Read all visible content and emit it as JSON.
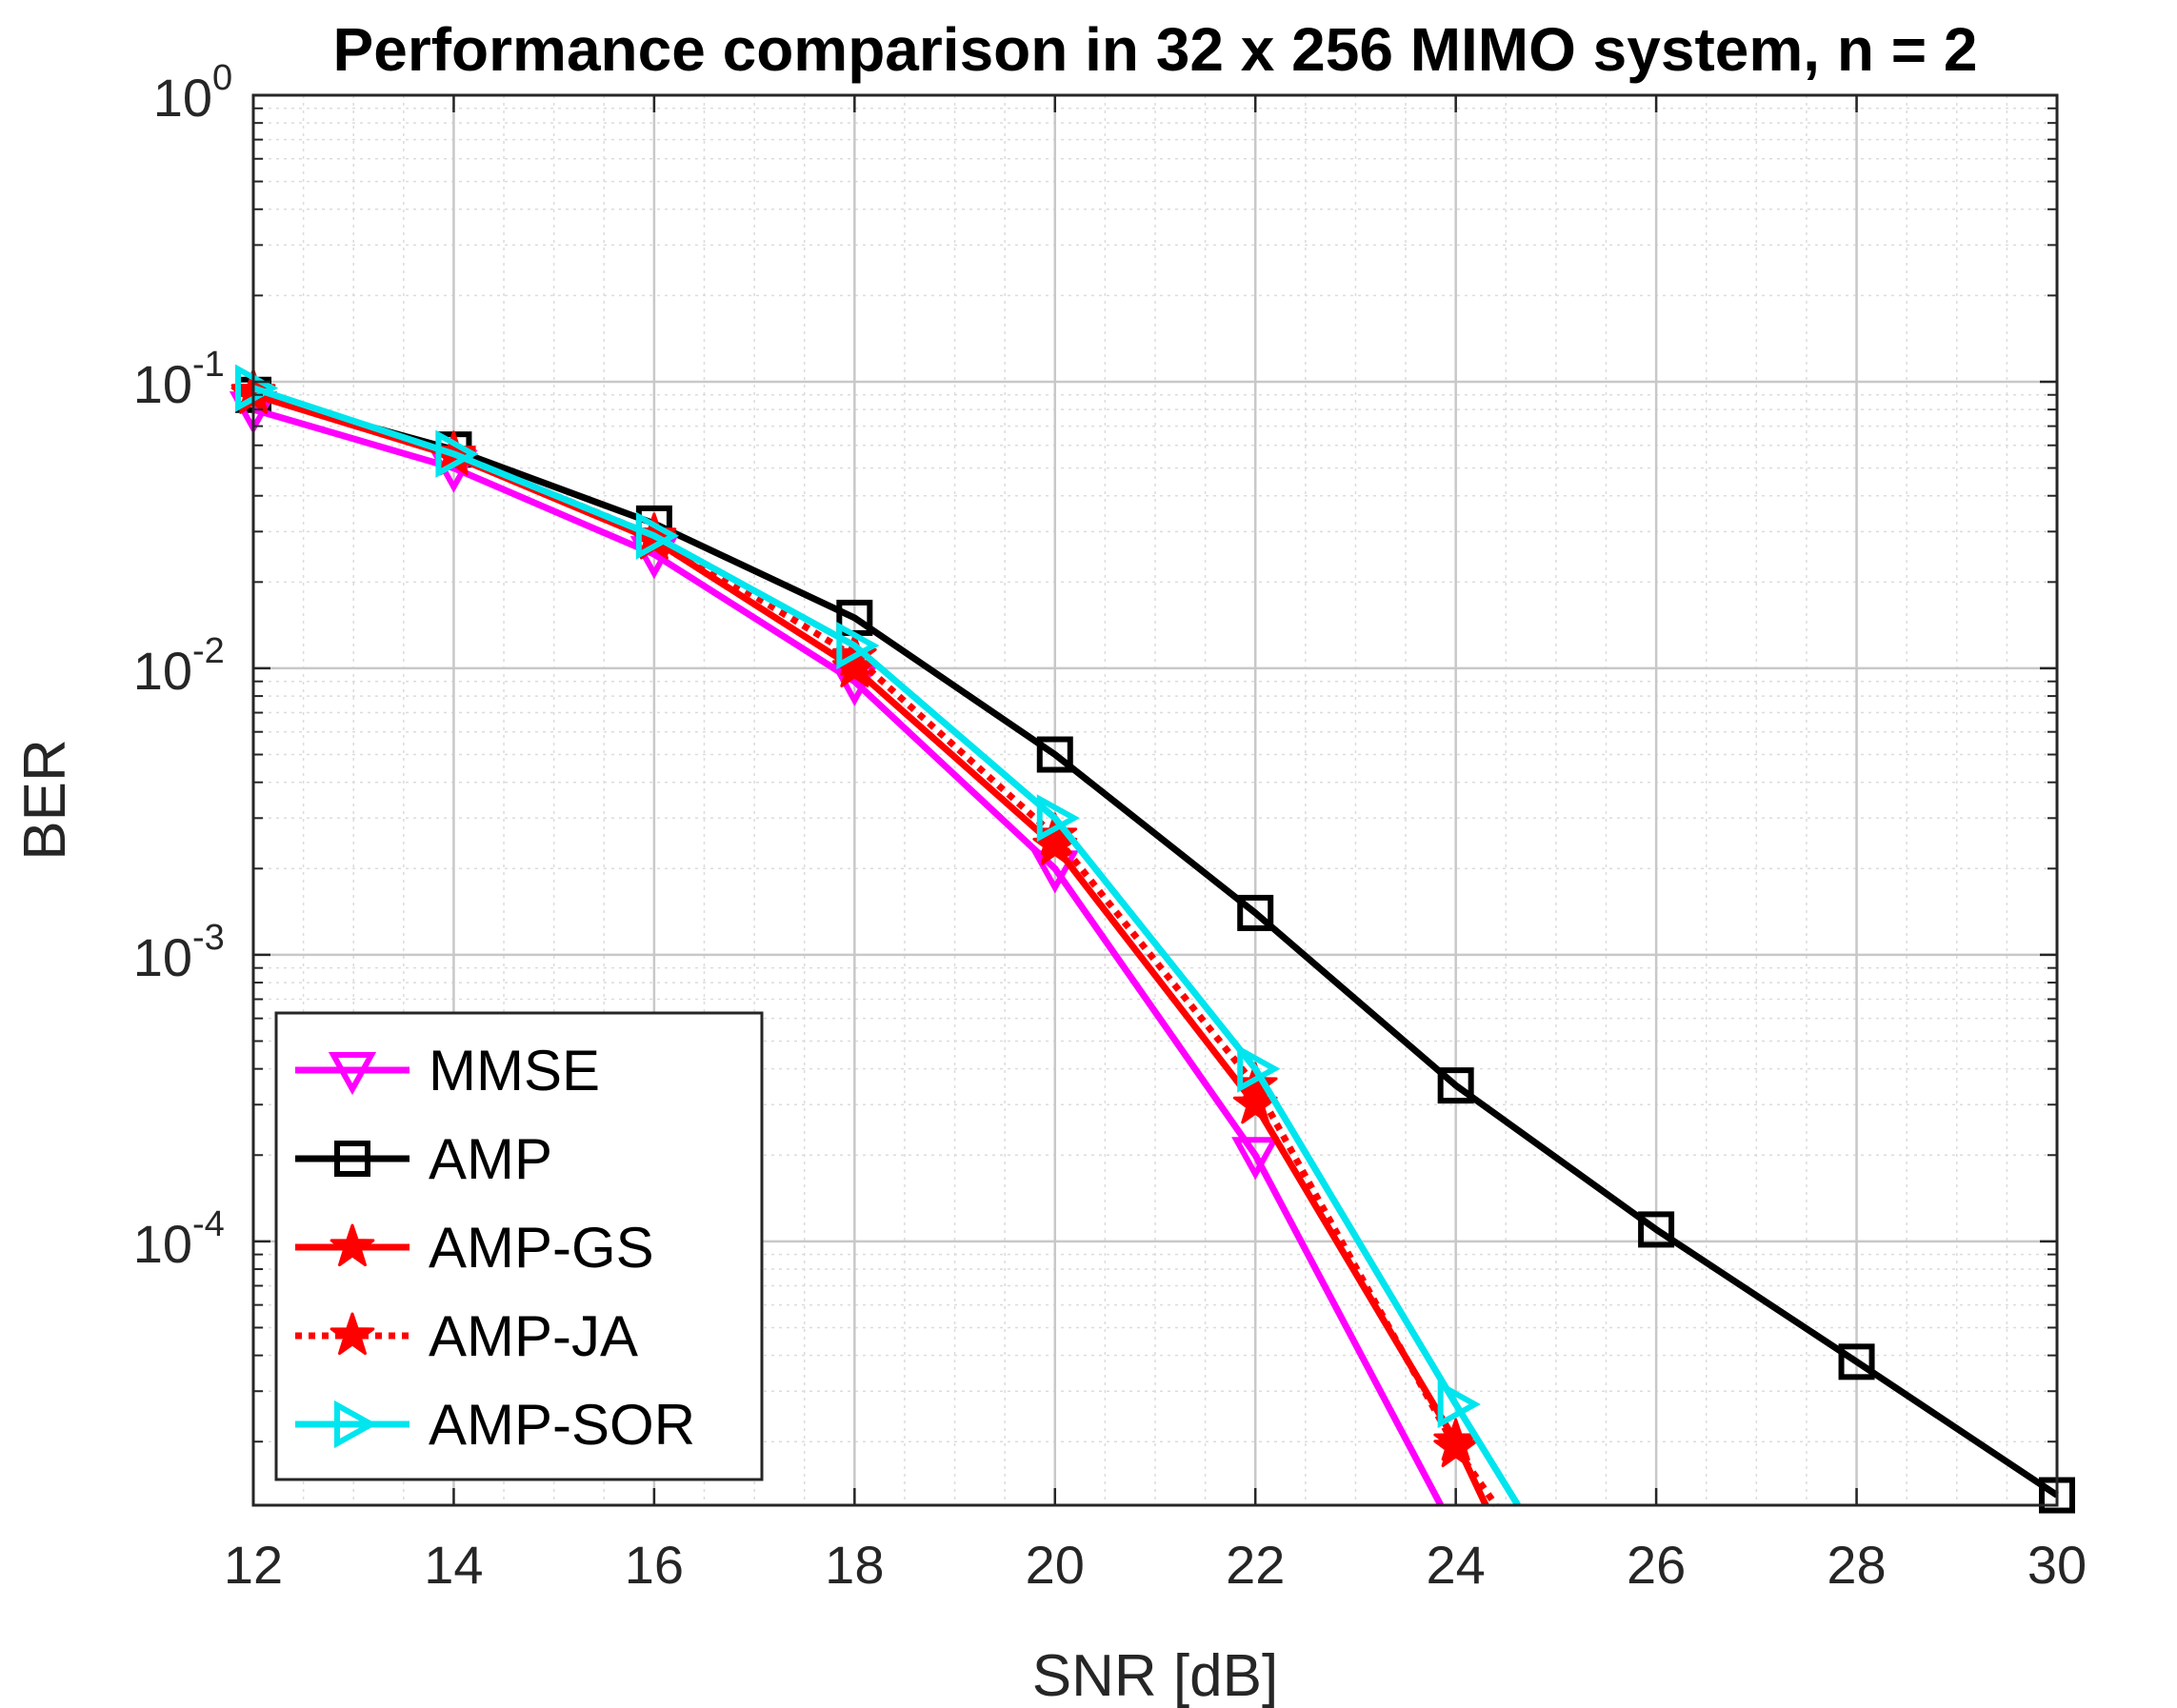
{
  "chart_data": {
    "type": "line",
    "title": "Performance comparison in 32 x 256 MIMO system, n = 2",
    "xlabel": "SNR [dB]",
    "ylabel": "BER",
    "xlim": [
      12,
      30
    ],
    "ylim": [
      1.2e-05,
      1
    ],
    "yscale": "log",
    "xticks": [
      "12",
      "14",
      "16",
      "18",
      "20",
      "22",
      "24",
      "26",
      "28",
      "30"
    ],
    "yticks": [
      {
        "base": "10",
        "exp": "0",
        "value": 1
      },
      {
        "base": "10",
        "exp": "-1",
        "value": 0.1
      },
      {
        "base": "10",
        "exp": "-2",
        "value": 0.01
      },
      {
        "base": "10",
        "exp": "-3",
        "value": 0.001
      },
      {
        "base": "10",
        "exp": "-4",
        "value": 0.0001
      }
    ],
    "grid": true,
    "minor_grid": true,
    "legend_position": "bottom-left",
    "series": [
      {
        "name": "MMSE",
        "color": "#ff00ff",
        "marker": "triangle-down",
        "dash": "solid",
        "x": [
          12,
          14,
          16,
          18,
          20,
          22,
          23.85
        ],
        "y": [
          0.08,
          0.05,
          0.025,
          0.009,
          0.002,
          0.0002,
          1.2e-05
        ],
        "markers": [
          true,
          true,
          true,
          true,
          true,
          true,
          false
        ]
      },
      {
        "name": "AMP",
        "color": "#000000",
        "marker": "square",
        "dash": "solid",
        "x": [
          12,
          14,
          16,
          18,
          20,
          22,
          24,
          26,
          28,
          30
        ],
        "y": [
          0.09,
          0.058,
          0.032,
          0.015,
          0.005,
          0.0014,
          0.00035,
          0.00011,
          3.8e-05,
          1.3e-05
        ],
        "markers": [
          true,
          true,
          true,
          true,
          true,
          true,
          true,
          true,
          true,
          true
        ]
      },
      {
        "name": "AMP-GS",
        "color": "#ff0000",
        "marker": "star",
        "dash": "solid",
        "x": [
          12,
          14,
          16,
          18,
          20,
          22,
          24,
          24.3
        ],
        "y": [
          0.09,
          0.055,
          0.028,
          0.01,
          0.0024,
          0.0003,
          2e-05,
          1.2e-05
        ],
        "markers": [
          true,
          true,
          true,
          true,
          true,
          true,
          true,
          false
        ]
      },
      {
        "name": "AMP-JA",
        "color": "#ff0000",
        "marker": "star",
        "dash": "dotted",
        "x": [
          12,
          14,
          16,
          18,
          20,
          22,
          24,
          24.4
        ],
        "y": [
          0.092,
          0.056,
          0.029,
          0.011,
          0.0026,
          0.00035,
          1.9e-05,
          1.2e-05
        ],
        "markers": [
          true,
          true,
          true,
          true,
          true,
          true,
          true,
          false
        ]
      },
      {
        "name": "AMP-SOR",
        "color": "#00e5ee",
        "marker": "triangle-right",
        "dash": "solid",
        "x": [
          12,
          14,
          16,
          18,
          20,
          22,
          24,
          24.62
        ],
        "y": [
          0.095,
          0.056,
          0.029,
          0.012,
          0.003,
          0.0004,
          2.7e-05,
          1.2e-05
        ],
        "markers": [
          true,
          true,
          true,
          true,
          true,
          true,
          true,
          false
        ]
      }
    ]
  }
}
